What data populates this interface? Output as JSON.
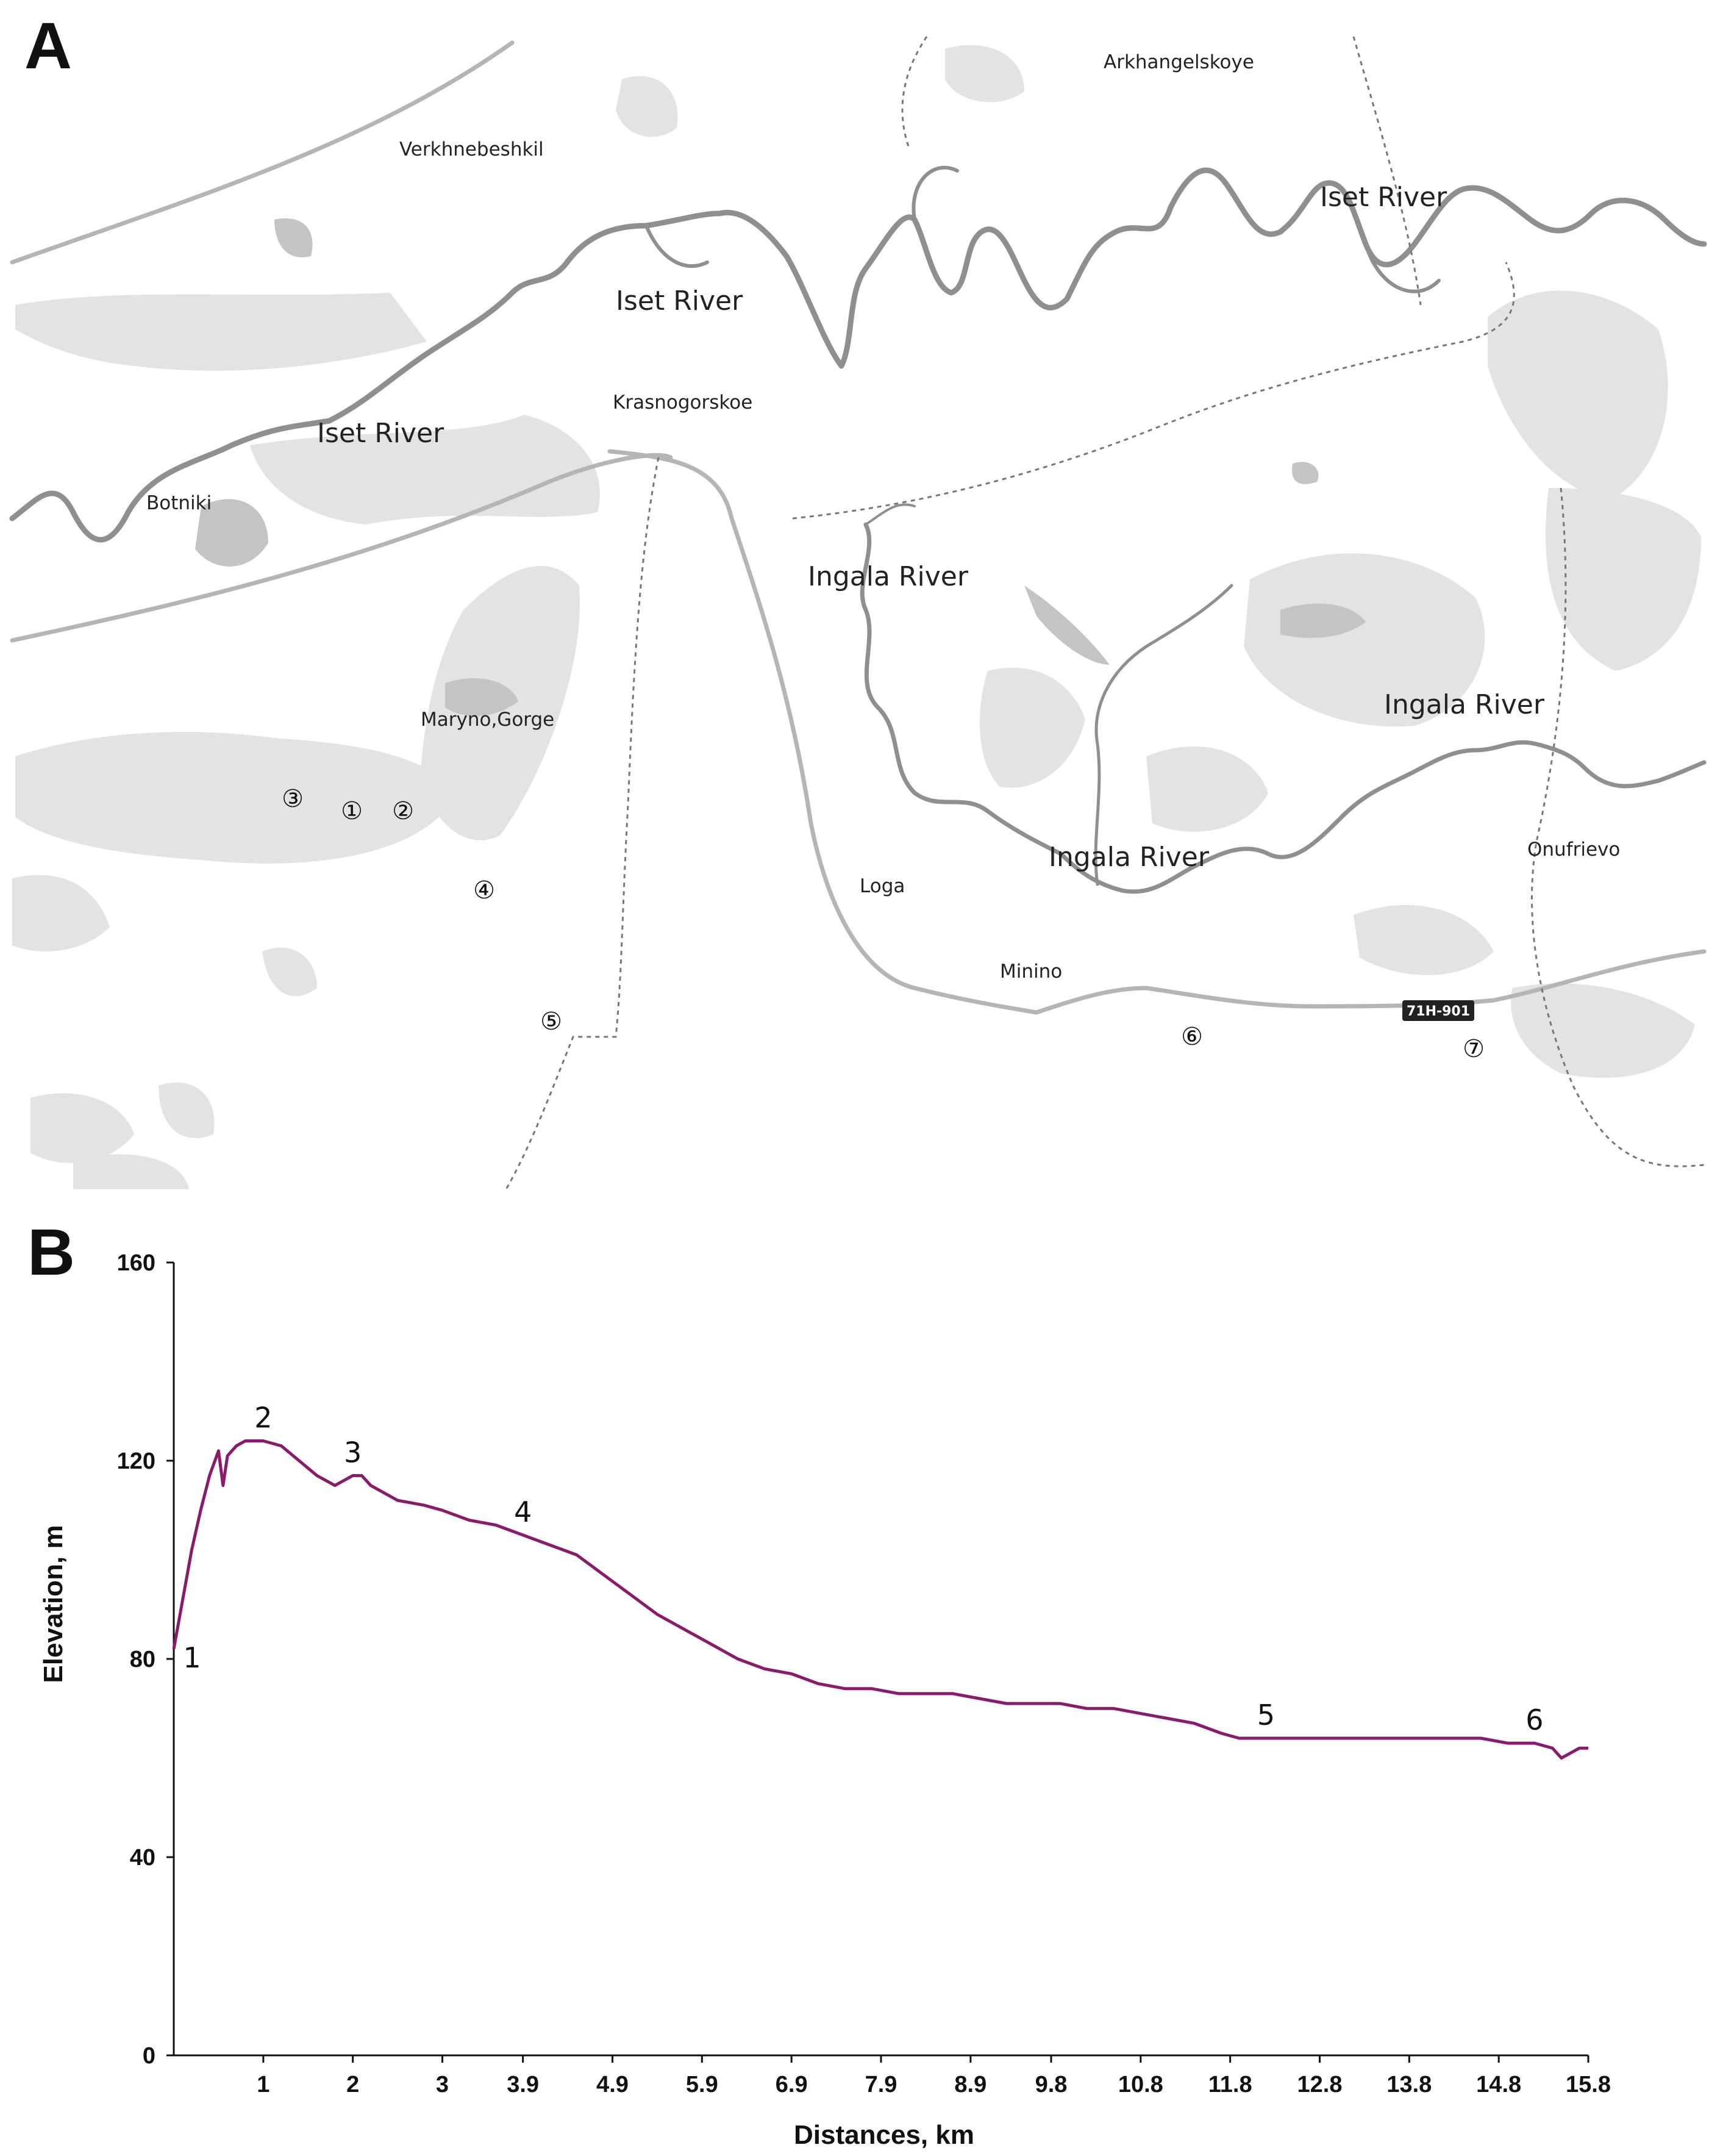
{
  "panel_a": {
    "letter": "A",
    "river_labels": [
      {
        "id": "iset-1",
        "text": "Iset River"
      },
      {
        "id": "iset-2",
        "text": "Iset River"
      },
      {
        "id": "iset-3",
        "text": "Iset River"
      },
      {
        "id": "ingala-1",
        "text": "Ingala River"
      },
      {
        "id": "ingala-2",
        "text": "Ingala River"
      },
      {
        "id": "ingala-3",
        "text": "Ingala River"
      }
    ],
    "place_labels": [
      {
        "id": "arkhangelskoye",
        "text": "Arkhangelskoye"
      },
      {
        "id": "verkhnebeshkil",
        "text": "Verkhnebeshkil"
      },
      {
        "id": "krasnogorskoe",
        "text": "Krasnogorskoe"
      },
      {
        "id": "botniki",
        "text": "Botniki"
      },
      {
        "id": "maryno-gorge",
        "text": "Maryno,Gorge"
      },
      {
        "id": "loga",
        "text": "Loga"
      },
      {
        "id": "minino",
        "text": "Minino"
      },
      {
        "id": "onufrievo",
        "text": "Onufrievo"
      }
    ],
    "road_tag": "71H-901",
    "markers": [
      "①",
      "②",
      "③",
      "④",
      "⑤",
      "⑥",
      "⑦"
    ],
    "colors": {
      "land_patch": "#e3e3e3",
      "dark_patch": "#c4c4c4",
      "river": "#8f8f8f",
      "road": "#b5b5b5",
      "boundary": "#777777"
    }
  },
  "panel_b": {
    "letter": "B",
    "chart_data": {
      "type": "line",
      "title": "",
      "xlabel": "Distances, km",
      "ylabel": "Elevation, m",
      "xlim": [
        0,
        15.8
      ],
      "ylim": [
        0,
        160
      ],
      "x_tick_labels": [
        "1",
        "2",
        "3",
        "3.9",
        "4.9",
        "5.9",
        "6.9",
        "7.9",
        "8.9",
        "9.8",
        "10.8",
        "11.8",
        "12.8",
        "13.8",
        "14.8",
        "15.8"
      ],
      "x_tick_values": [
        1,
        2,
        3,
        3.9,
        4.9,
        5.9,
        6.9,
        7.9,
        8.9,
        9.8,
        10.8,
        11.8,
        12.8,
        13.8,
        14.8,
        15.8
      ],
      "y_ticks": [
        0,
        40,
        80,
        120,
        160
      ],
      "grid": false,
      "color": "#8a1b6b",
      "series": [
        {
          "x": [
            0,
            0.1,
            0.2,
            0.3,
            0.4,
            0.5,
            0.55,
            0.6,
            0.7,
            0.8,
            1.0,
            1.2,
            1.4,
            1.6,
            1.8,
            2.0,
            2.1,
            2.2,
            2.5,
            2.8,
            3.0,
            3.3,
            3.6,
            3.9,
            4.2,
            4.5,
            4.8,
            5.1,
            5.4,
            5.7,
            6.0,
            6.3,
            6.6,
            6.9,
            7.2,
            7.5,
            7.8,
            8.1,
            8.4,
            8.7,
            9.0,
            9.3,
            9.6,
            9.9,
            10.2,
            10.5,
            10.8,
            11.1,
            11.4,
            11.7,
            11.9,
            12.2,
            12.5,
            12.8,
            13.1,
            13.4,
            13.7,
            14.0,
            14.3,
            14.6,
            14.9,
            15.2,
            15.4,
            15.5,
            15.6,
            15.7,
            15.8
          ],
          "y": [
            82,
            92,
            102,
            110,
            117,
            122,
            115,
            121,
            123,
            124,
            124,
            123,
            120,
            117,
            115,
            117,
            117,
            115,
            112,
            111,
            110,
            108,
            107,
            105,
            103,
            101,
            97,
            93,
            89,
            86,
            83,
            80,
            78,
            77,
            75,
            74,
            74,
            73,
            73,
            73,
            72,
            71,
            71,
            71,
            70,
            70,
            69,
            68,
            67,
            65,
            64,
            64,
            64,
            64,
            64,
            64,
            64,
            64,
            64,
            64,
            63,
            63,
            62,
            60,
            61,
            62,
            62
          ]
        }
      ],
      "annotations": [
        {
          "label": "1",
          "x": 0.0,
          "y": 82
        },
        {
          "label": "2",
          "x": 1.0,
          "y": 124
        },
        {
          "label": "3",
          "x": 2.0,
          "y": 117
        },
        {
          "label": "4",
          "x": 3.9,
          "y": 105
        },
        {
          "label": "5",
          "x": 12.2,
          "y": 64
        },
        {
          "label": "6",
          "x": 15.2,
          "y": 63
        }
      ]
    }
  }
}
